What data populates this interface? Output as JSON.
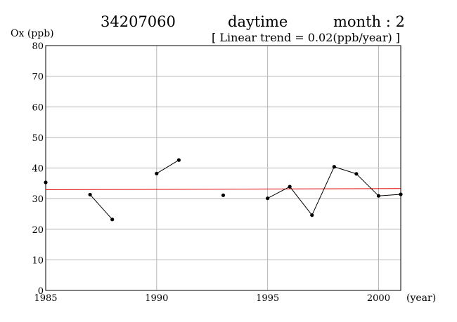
{
  "header": {
    "station": "34207060",
    "period": "daytime",
    "month_label": "month : 2",
    "trend_label": "[ Linear trend = 0.02(ppb/year) ]"
  },
  "chart_data": {
    "type": "line",
    "ylabel": "Ox (ppb)",
    "xlabel": "(year)",
    "xlim": [
      1985,
      2001
    ],
    "ylim": [
      0,
      80
    ],
    "x_ticks": [
      1985,
      1990,
      1995,
      2000
    ],
    "y_ticks": [
      0,
      10,
      20,
      30,
      40,
      50,
      60,
      70,
      80
    ],
    "grid": true,
    "series": [
      {
        "color": "#000000",
        "points": [
          {
            "x": 1985,
            "y": 35.3
          },
          {
            "x": 1986,
            "y": null
          },
          {
            "x": 1987,
            "y": 31.3
          },
          {
            "x": 1988,
            "y": 23.2
          },
          {
            "x": 1989,
            "y": null
          },
          {
            "x": 1990,
            "y": 38.2
          },
          {
            "x": 1991,
            "y": 42.6
          },
          {
            "x": 1992,
            "y": null
          },
          {
            "x": 1993,
            "y": 31.1
          },
          {
            "x": 1994,
            "y": null
          },
          {
            "x": 1995,
            "y": 30.1
          },
          {
            "x": 1996,
            "y": 33.9
          },
          {
            "x": 1997,
            "y": 24.6
          },
          {
            "x": 1998,
            "y": 40.4
          },
          {
            "x": 1999,
            "y": 38.1
          },
          {
            "x": 2000,
            "y": 30.9
          },
          {
            "x": 2001,
            "y": 31.4
          }
        ]
      }
    ],
    "trend": {
      "color": "#e00000",
      "start": {
        "x": 1985,
        "y": 32.9
      },
      "end": {
        "x": 2001,
        "y": 33.3
      }
    }
  }
}
